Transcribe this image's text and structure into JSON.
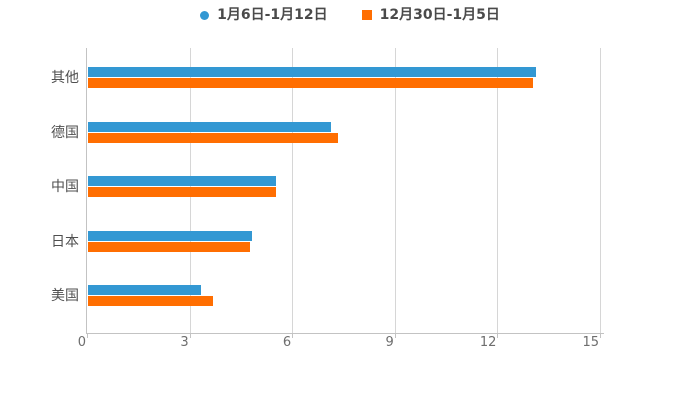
{
  "legend": {
    "items": [
      {
        "label": "1月6日-1月12日",
        "color": "#3398d3",
        "marker": "circle"
      },
      {
        "label": "12月30日-1月5日",
        "color": "#ff6e01",
        "marker": "square"
      }
    ]
  },
  "chart_data": {
    "type": "bar",
    "orientation": "horizontal",
    "title": "",
    "xlabel": "",
    "ylabel": "",
    "categories": [
      "其他",
      "德国",
      "中国",
      "日本",
      "美国"
    ],
    "series": [
      {
        "name": "1月6日-1月12日",
        "color": "#3398d3",
        "values": [
          13.1,
          7.1,
          5.5,
          4.8,
          3.3
        ]
      },
      {
        "name": "12月30日-1月5日",
        "color": "#ff6e01",
        "values": [
          13.0,
          7.3,
          5.5,
          4.75,
          3.65
        ]
      }
    ],
    "x_ticks": [
      0,
      3,
      6,
      9,
      12,
      15
    ],
    "xlim": [
      0,
      15
    ],
    "grid": true,
    "legend_position": "top"
  },
  "colors": {
    "background": "#ffffff",
    "gridline": "#d6d6d6",
    "axis": "#c3c3c3",
    "tick_label": "#6e6e6e",
    "category_label": "#4f4f4f",
    "legend_text": "#4a4a4a"
  }
}
